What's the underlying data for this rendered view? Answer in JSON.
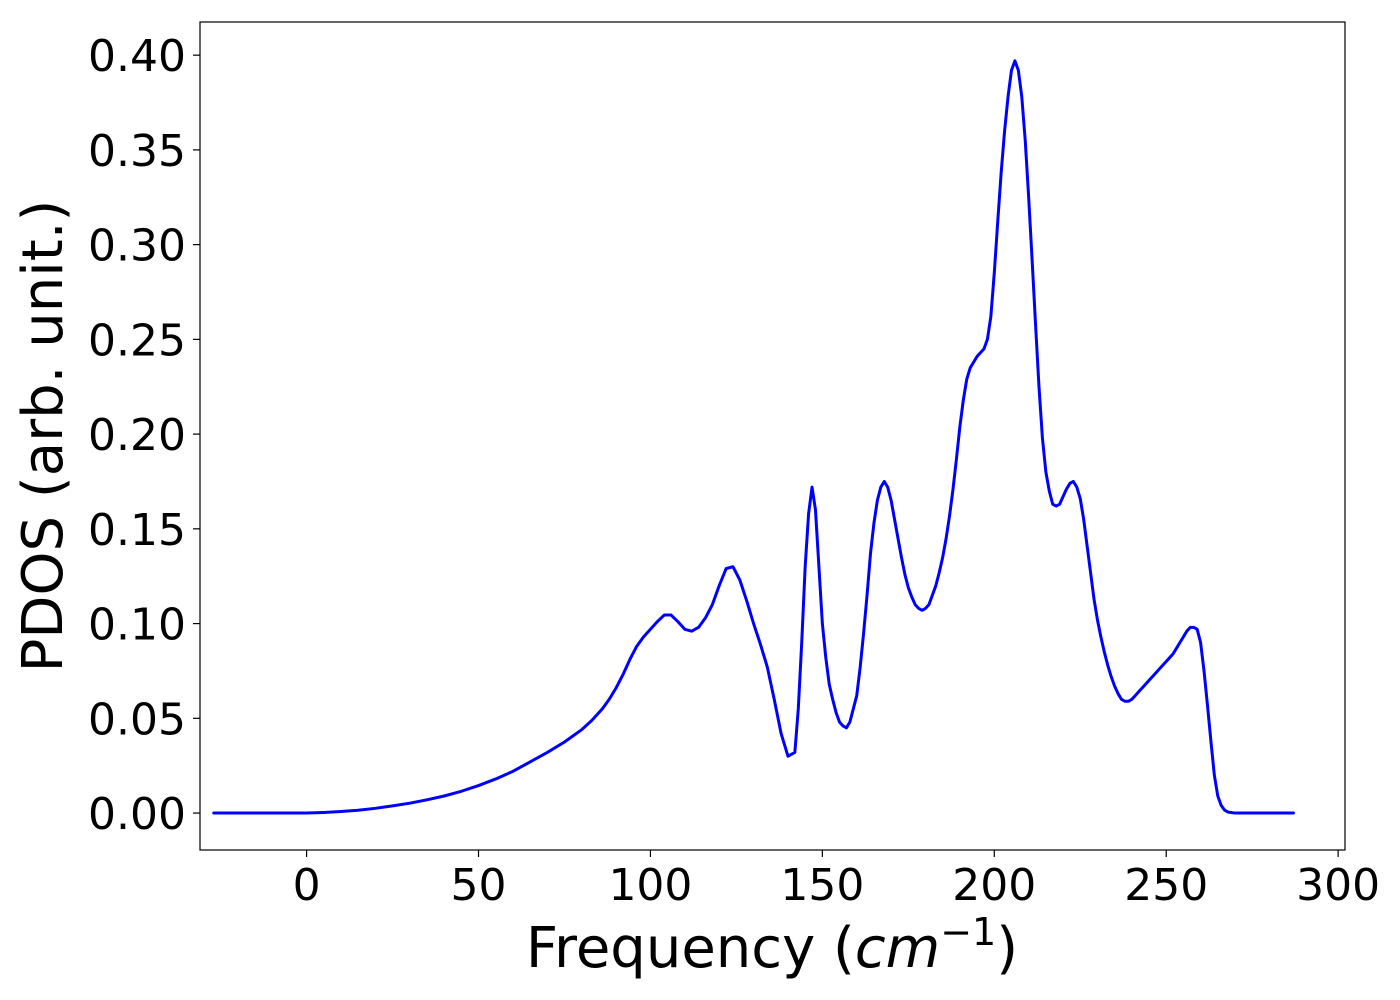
{
  "chart_data": {
    "type": "line",
    "title": "",
    "xlabel": {
      "main": "Frequency (",
      "italic": "cm",
      "sup": "−1",
      "close": ")"
    },
    "ylabel": "PDOS (arb. unit.)",
    "xlim": [
      -31,
      302
    ],
    "ylim": [
      -0.0195,
      0.4175
    ],
    "xticks": [
      0,
      50,
      100,
      150,
      200,
      250,
      300
    ],
    "yticks": [
      0.0,
      0.05,
      0.1,
      0.15,
      0.2,
      0.25,
      0.3,
      0.35,
      0.4
    ],
    "xtick_labels": [
      "0",
      "50",
      "100",
      "150",
      "200",
      "250",
      "300"
    ],
    "ytick_labels": [
      "0.00",
      "0.05",
      "0.10",
      "0.15",
      "0.20",
      "0.25",
      "0.30",
      "0.35",
      "0.40"
    ],
    "grid": false,
    "legend": "none",
    "series": [
      {
        "color": "#0000ff",
        "x": [
          -27,
          -10,
          0,
          5,
          10,
          15,
          20,
          25,
          30,
          35,
          40,
          45,
          50,
          55,
          60,
          65,
          70,
          75,
          80,
          83,
          86,
          88,
          90,
          92,
          94,
          96,
          98,
          100,
          102,
          104,
          106,
          108,
          110,
          112,
          114,
          116,
          118,
          120,
          122,
          124,
          126,
          128,
          130,
          132,
          134,
          136,
          138,
          140,
          141,
          142,
          143,
          144,
          145,
          146,
          147,
          148,
          149,
          150,
          151,
          152,
          153,
          154,
          155,
          156,
          157,
          158,
          159,
          160,
          161,
          162,
          163,
          164,
          165,
          166,
          167,
          168,
          169,
          170,
          171,
          172,
          173,
          174,
          175,
          176,
          177,
          178,
          179,
          180,
          181,
          182,
          183,
          184,
          185,
          186,
          187,
          188,
          189,
          190,
          191,
          192,
          193,
          194,
          195,
          196,
          197,
          198,
          199,
          200,
          201,
          202,
          203,
          204,
          205,
          206,
          207,
          208,
          209,
          210,
          211,
          212,
          213,
          214,
          215,
          216,
          217,
          218,
          219,
          220,
          221,
          222,
          223,
          224,
          225,
          226,
          227,
          228,
          229,
          230,
          231,
          232,
          233,
          234,
          235,
          236,
          237,
          238,
          239,
          240,
          241,
          242,
          243,
          244,
          245,
          246,
          247,
          248,
          249,
          250,
          251,
          252,
          253,
          254,
          255,
          256,
          257,
          258,
          259,
          260,
          261,
          262,
          263,
          264,
          265,
          266,
          267,
          268,
          270,
          273,
          276,
          280,
          287
        ],
        "y": [
          0.0,
          0.0,
          0.0,
          0.0003,
          0.0008,
          0.0015,
          0.0025,
          0.0038,
          0.0052,
          0.007,
          0.009,
          0.0115,
          0.0145,
          0.018,
          0.022,
          0.027,
          0.032,
          0.0375,
          0.044,
          0.049,
          0.055,
          0.06,
          0.066,
          0.073,
          0.081,
          0.088,
          0.093,
          0.097,
          0.101,
          0.1045,
          0.1045,
          0.101,
          0.097,
          0.096,
          0.098,
          0.103,
          0.11,
          0.12,
          0.129,
          0.13,
          0.123,
          0.112,
          0.1,
          0.089,
          0.077,
          0.06,
          0.042,
          0.03,
          0.031,
          0.032,
          0.055,
          0.09,
          0.13,
          0.158,
          0.172,
          0.16,
          0.13,
          0.1,
          0.082,
          0.068,
          0.06,
          0.053,
          0.048,
          0.046,
          0.045,
          0.048,
          0.055,
          0.062,
          0.077,
          0.095,
          0.115,
          0.137,
          0.153,
          0.165,
          0.172,
          0.175,
          0.172,
          0.165,
          0.155,
          0.145,
          0.135,
          0.126,
          0.119,
          0.114,
          0.11,
          0.108,
          0.107,
          0.108,
          0.11,
          0.115,
          0.12,
          0.127,
          0.135,
          0.145,
          0.157,
          0.171,
          0.187,
          0.204,
          0.218,
          0.229,
          0.235,
          0.238,
          0.241,
          0.243,
          0.245,
          0.25,
          0.262,
          0.285,
          0.312,
          0.338,
          0.36,
          0.378,
          0.392,
          0.397,
          0.392,
          0.378,
          0.355,
          0.325,
          0.292,
          0.258,
          0.225,
          0.198,
          0.18,
          0.17,
          0.163,
          0.162,
          0.163,
          0.167,
          0.171,
          0.174,
          0.175,
          0.172,
          0.166,
          0.155,
          0.141,
          0.127,
          0.113,
          0.102,
          0.093,
          0.085,
          0.078,
          0.072,
          0.067,
          0.063,
          0.06,
          0.059,
          0.059,
          0.06,
          0.062,
          0.064,
          0.066,
          0.068,
          0.07,
          0.072,
          0.074,
          0.076,
          0.078,
          0.08,
          0.082,
          0.084,
          0.087,
          0.09,
          0.093,
          0.096,
          0.098,
          0.098,
          0.097,
          0.09,
          0.075,
          0.057,
          0.038,
          0.02,
          0.009,
          0.004,
          0.0015,
          0.0005,
          0.0,
          0.0,
          0.0,
          0.0,
          0.0
        ]
      }
    ]
  }
}
